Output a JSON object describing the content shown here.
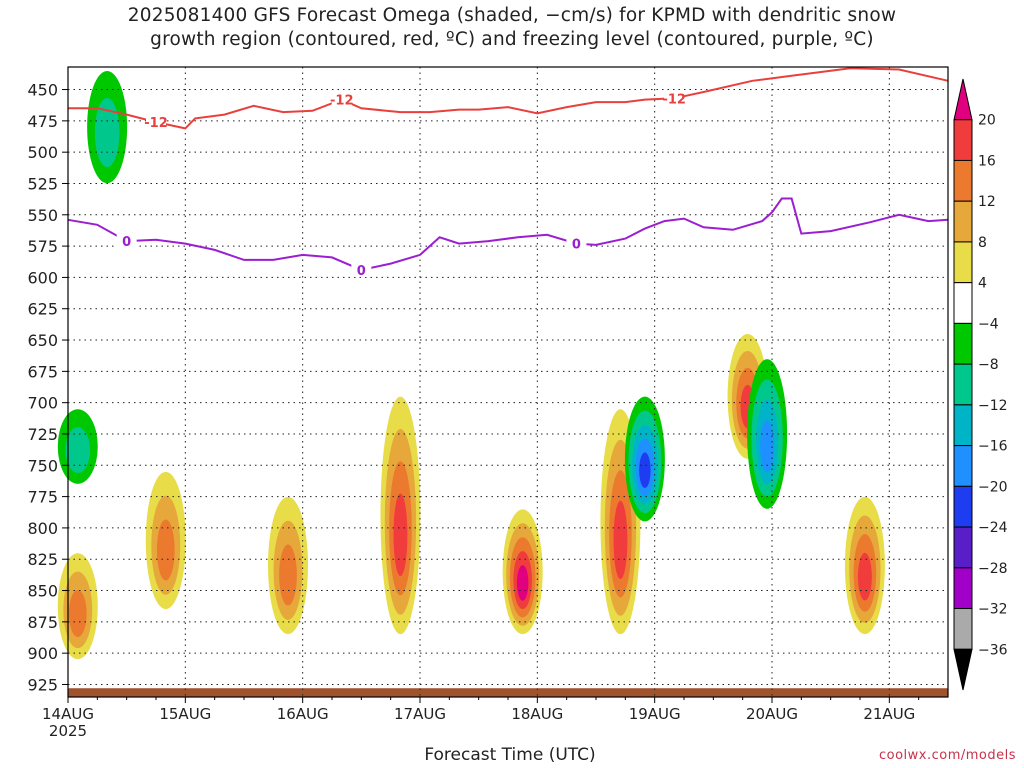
{
  "title_line1": "2025081400 GFS Forecast Omega (shaded, −cm/s) for KPMD with dendritic snow",
  "title_line2": "growth region (contoured, red, ºC) and freezing level (contoured, purple, ºC)",
  "credit": "coolwx.com/models",
  "chart_data": {
    "type": "heatmap",
    "xlabel": "Forecast Time (UTC)",
    "x_tick_labels": [
      "14AUG",
      "15AUG",
      "16AUG",
      "17AUG",
      "18AUG",
      "19AUG",
      "20AUG",
      "21AUG"
    ],
    "x_year_label": "2025",
    "x_range_hours": [
      0,
      180
    ],
    "y_tick_labels": [
      450,
      475,
      500,
      525,
      550,
      575,
      600,
      625,
      650,
      675,
      700,
      725,
      750,
      775,
      800,
      825,
      850,
      875,
      900,
      925
    ],
    "y_range_hpa": [
      432,
      935
    ],
    "y_unit": "hPa",
    "colorbar": {
      "label_values": [
        20,
        16,
        12,
        8,
        4,
        -4,
        -8,
        -12,
        -16,
        -20,
        -24,
        -28,
        -32,
        -36
      ],
      "bins": [
        {
          "range": "> 20",
          "color": "#e0007f"
        },
        {
          "range": "16 to 20",
          "color": "#f03c3c"
        },
        {
          "range": "12 to 16",
          "color": "#ec7a2e"
        },
        {
          "range": "8 to 12",
          "color": "#e6a83a"
        },
        {
          "range": "4 to 8",
          "color": "#e8dc48"
        },
        {
          "range": "-4 to 4",
          "color": "#ffffff"
        },
        {
          "range": "-8 to -4",
          "color": "#00c800"
        },
        {
          "range": "-12 to -8",
          "color": "#00c88c"
        },
        {
          "range": "-16 to -12",
          "color": "#00b4c8"
        },
        {
          "range": "-20 to -16",
          "color": "#1e90ff"
        },
        {
          "range": "-24 to -20",
          "color": "#1e3cf0"
        },
        {
          "range": "-28 to -24",
          "color": "#5a1ec8"
        },
        {
          "range": "-32 to -28",
          "color": "#a000c8"
        },
        {
          "range": "-36 to -32",
          "color": "#aaaaaa"
        },
        {
          "range": "< -36",
          "color": "#000000"
        }
      ]
    },
    "contours": [
      {
        "label": "-12",
        "color": "#e8403c",
        "points": [
          [
            0,
            465
          ],
          [
            6,
            465
          ],
          [
            12,
            470
          ],
          [
            18,
            476
          ],
          [
            24,
            481
          ],
          [
            26,
            473
          ],
          [
            32,
            470
          ],
          [
            38,
            463
          ],
          [
            44,
            468
          ],
          [
            50,
            467
          ],
          [
            56,
            458
          ],
          [
            60,
            465
          ],
          [
            68,
            468
          ],
          [
            74,
            468
          ],
          [
            80,
            466
          ],
          [
            84,
            466
          ],
          [
            90,
            464
          ],
          [
            96,
            469
          ],
          [
            102,
            464
          ],
          [
            108,
            460
          ],
          [
            114,
            460
          ],
          [
            118,
            458
          ],
          [
            124,
            457
          ],
          [
            130,
            452
          ],
          [
            140,
            443
          ],
          [
            148,
            439
          ],
          [
            160,
            433
          ],
          [
            170,
            434
          ],
          [
            180,
            443
          ]
        ]
      },
      {
        "label": "0",
        "color": "#9b1ed0",
        "points": [
          [
            0,
            554
          ],
          [
            6,
            558
          ],
          [
            12,
            571
          ],
          [
            18,
            570
          ],
          [
            24,
            573
          ],
          [
            30,
            578
          ],
          [
            36,
            586
          ],
          [
            42,
            586
          ],
          [
            48,
            582
          ],
          [
            54,
            584
          ],
          [
            60,
            594
          ],
          [
            66,
            589
          ],
          [
            72,
            582
          ],
          [
            76,
            568
          ],
          [
            80,
            573
          ],
          [
            86,
            571
          ],
          [
            92,
            568
          ],
          [
            98,
            566
          ],
          [
            104,
            573
          ],
          [
            108,
            574
          ],
          [
            114,
            569
          ],
          [
            118,
            561
          ],
          [
            122,
            555
          ],
          [
            126,
            553
          ],
          [
            130,
            560
          ],
          [
            136,
            562
          ],
          [
            142,
            555
          ],
          [
            144,
            548
          ],
          [
            146,
            537
          ],
          [
            148,
            537
          ],
          [
            150,
            565
          ],
          [
            156,
            563
          ],
          [
            164,
            556
          ],
          [
            170,
            550
          ],
          [
            176,
            555
          ],
          [
            180,
            554
          ]
        ]
      }
    ],
    "omega_regions": [
      {
        "t": 2,
        "p": [
          710,
          760
        ],
        "v": -8
      },
      {
        "t": 8,
        "p": [
          440,
          520
        ],
        "v": -8
      },
      {
        "t": 2,
        "p": [
          825,
          900
        ],
        "v": 12
      },
      {
        "t": 20,
        "p": [
          760,
          860
        ],
        "v": 12
      },
      {
        "t": 45,
        "p": [
          780,
          880
        ],
        "v": 14
      },
      {
        "t": 68,
        "p": [
          700,
          880
        ],
        "v": 16
      },
      {
        "t": 93,
        "p": [
          790,
          880
        ],
        "v": 20
      },
      {
        "t": 113,
        "p": [
          710,
          880
        ],
        "v": 16
      },
      {
        "t": 118,
        "p": [
          700,
          790
        ],
        "v": -20
      },
      {
        "t": 139,
        "p": [
          650,
          740
        ],
        "v": 16
      },
      {
        "t": 143,
        "p": [
          670,
          780
        ],
        "v": -16
      },
      {
        "t": 163,
        "p": [
          780,
          880
        ],
        "v": 16
      }
    ],
    "ground_level_hpa": 928
  }
}
